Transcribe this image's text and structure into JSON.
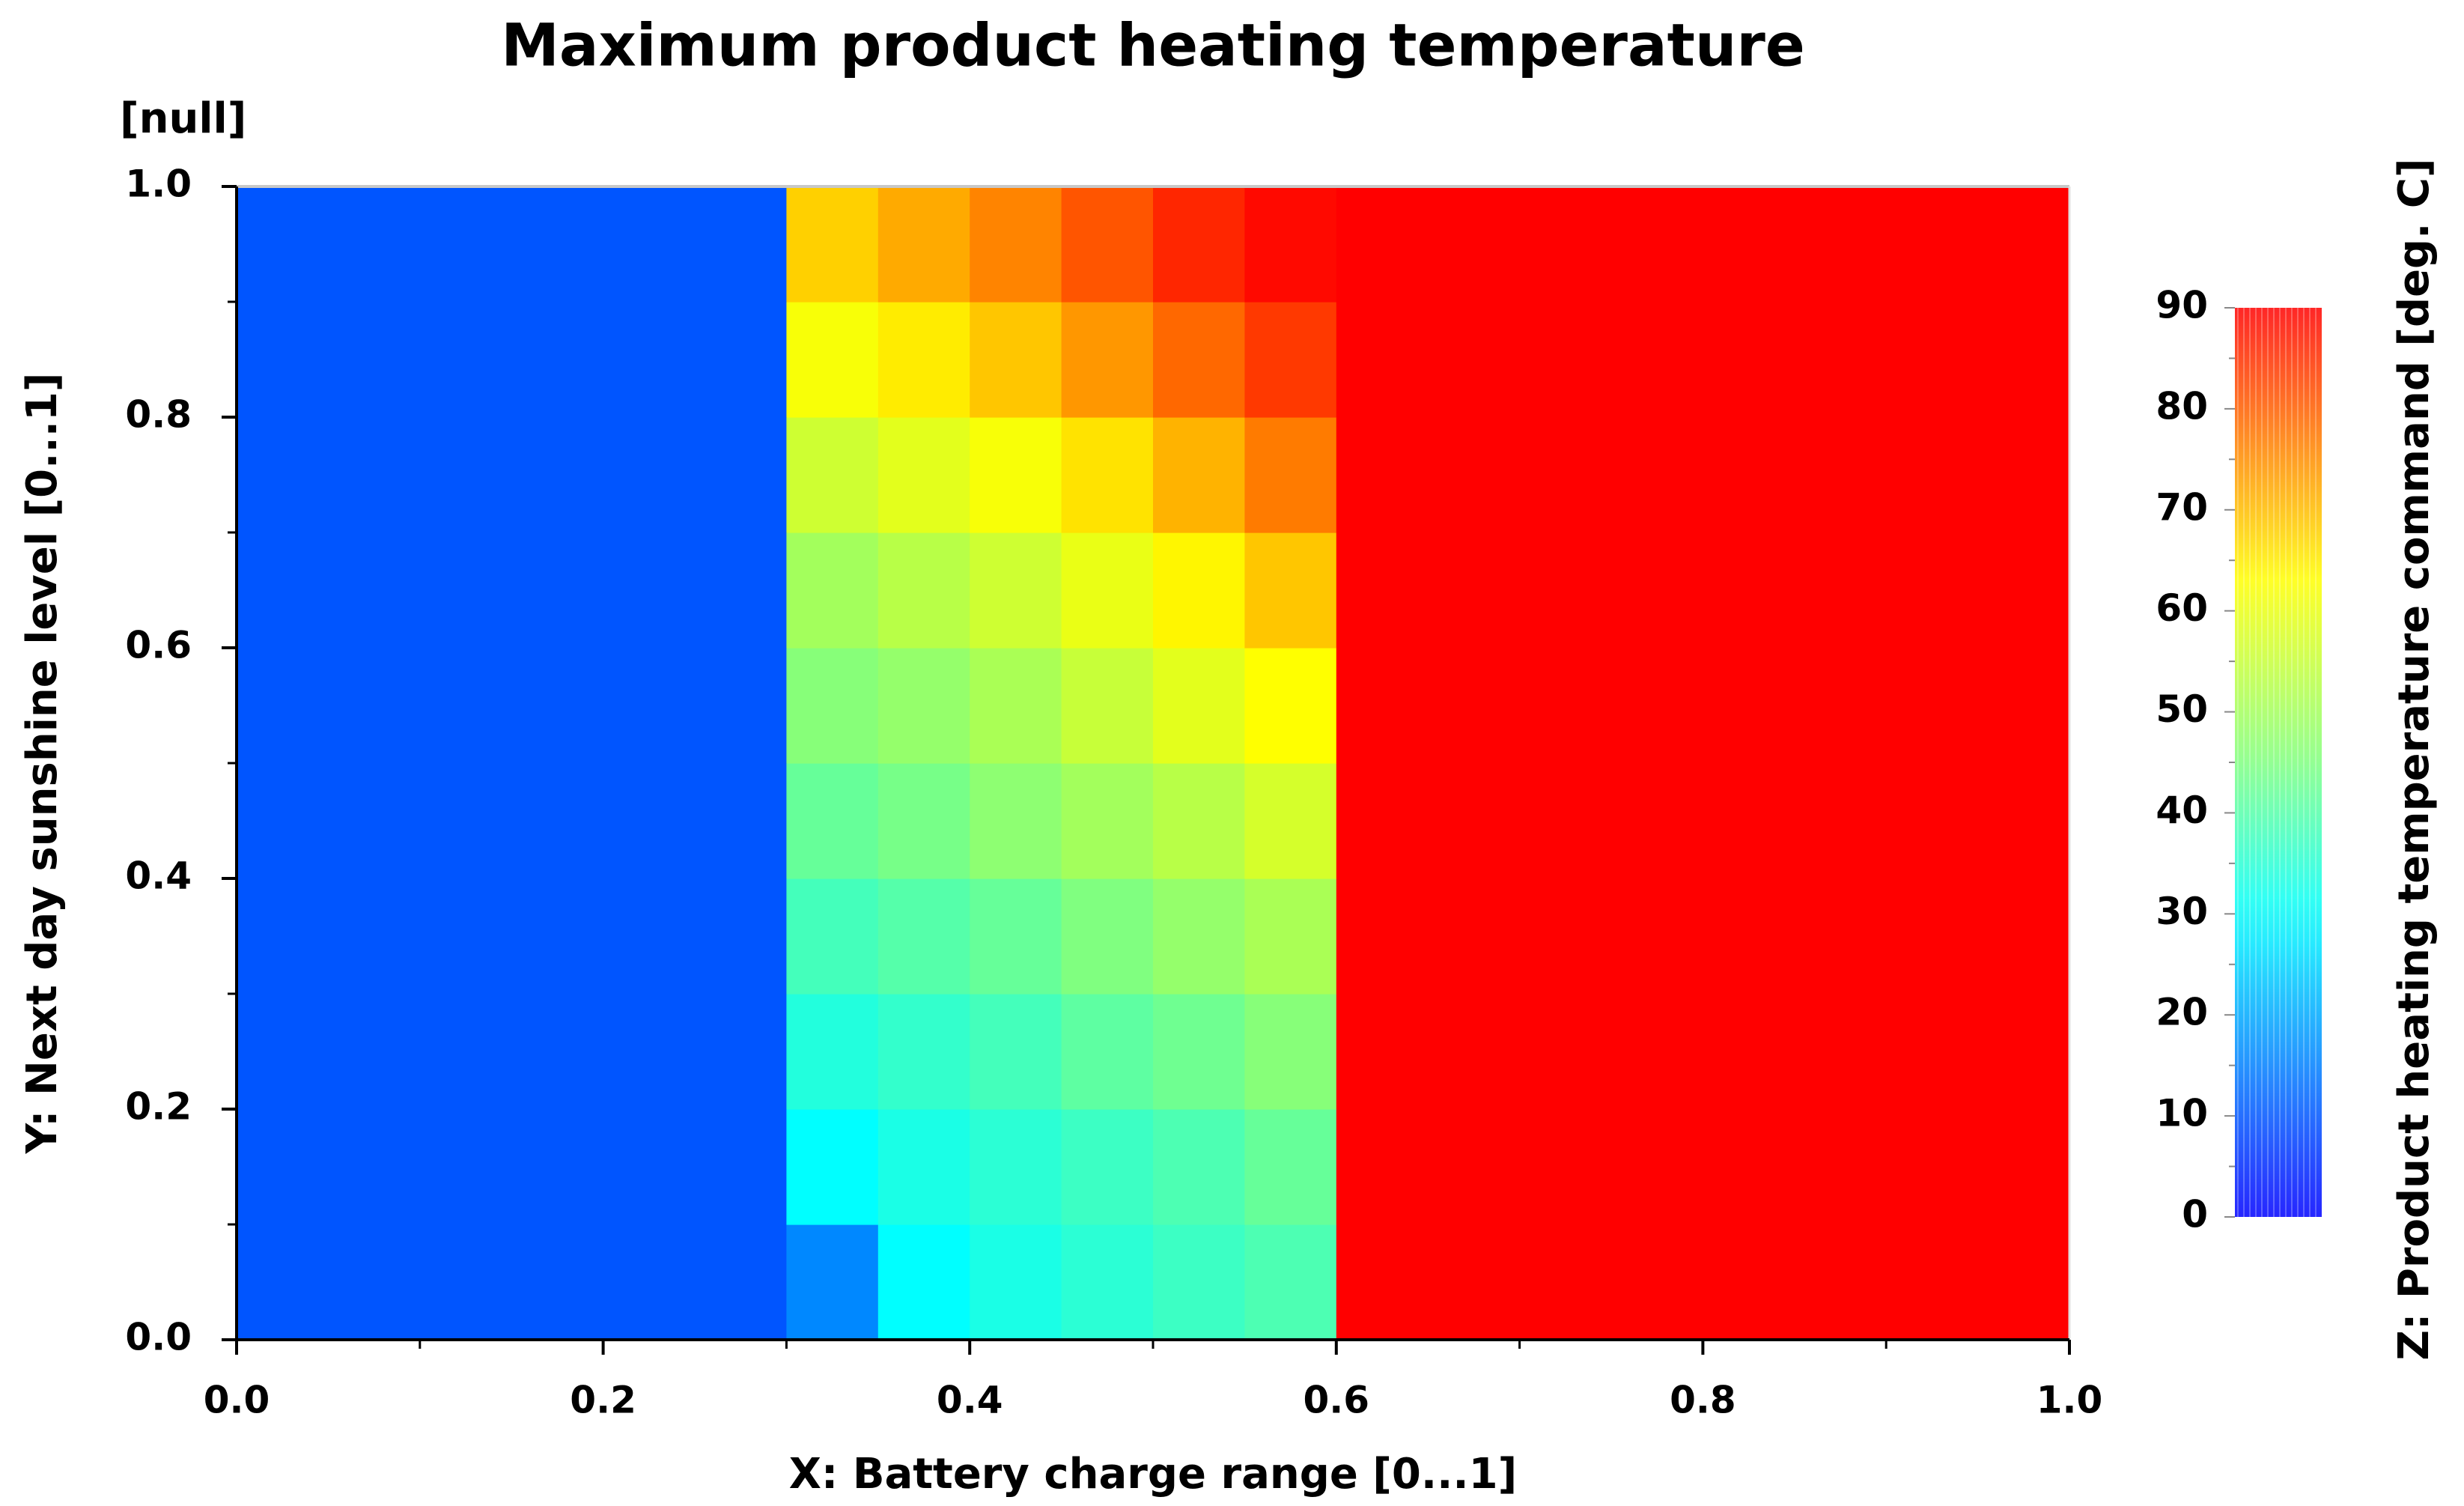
{
  "chart_data": {
    "type": "heatmap",
    "title": "Maximum product heating temperature",
    "annotation": "[null]",
    "x_label": "X: Battery charge range [0...1]",
    "y_label": "Y: Next day sunshine level [0...1]",
    "colorbar_label": "Z: Product heating temperature command [deg. C]",
    "colormap": "rainbow",
    "x_edges": [
      0.0,
      0.3,
      0.35,
      0.4,
      0.45,
      0.5,
      0.55,
      0.6,
      1.0
    ],
    "y_edges": [
      0.0,
      0.1,
      0.2,
      0.3,
      0.4,
      0.5,
      0.6,
      0.7,
      0.8,
      0.9,
      1.0
    ],
    "z": [
      [
        10,
        16,
        30,
        33,
        35,
        37,
        39,
        90
      ],
      [
        10,
        30,
        33,
        35,
        37,
        39,
        42,
        90
      ],
      [
        10,
        34,
        36,
        38,
        41,
        43,
        46,
        90
      ],
      [
        10,
        38,
        40,
        42,
        45,
        48,
        51,
        90
      ],
      [
        10,
        42,
        44,
        47,
        50,
        53,
        57,
        90
      ],
      [
        10,
        46,
        48,
        51,
        55,
        59,
        63,
        90
      ],
      [
        10,
        50,
        53,
        56,
        60,
        64,
        69,
        90
      ],
      [
        10,
        56,
        59,
        62,
        66,
        71,
        77,
        90
      ],
      [
        10,
        62,
        65,
        69,
        74,
        79,
        84,
        90
      ],
      [
        10,
        68,
        72,
        76,
        81,
        86,
        89,
        90
      ]
    ],
    "xlim": [
      0,
      1
    ],
    "ylim": [
      0,
      1
    ],
    "zlim": [
      0,
      90
    ],
    "xticks": [
      {
        "value": 0,
        "label": "0.0"
      },
      {
        "value": 0.2,
        "label": "0.2"
      },
      {
        "value": 0.4,
        "label": "0.4"
      },
      {
        "value": 0.6,
        "label": "0.6"
      },
      {
        "value": 0.8,
        "label": "0.8"
      },
      {
        "value": 1,
        "label": "1.0"
      }
    ],
    "yticks": [
      {
        "value": 0,
        "label": "0.0"
      },
      {
        "value": 0.2,
        "label": "0.2"
      },
      {
        "value": 0.4,
        "label": "0.4"
      },
      {
        "value": 0.6,
        "label": "0.6"
      },
      {
        "value": 0.8,
        "label": "0.8"
      },
      {
        "value": 1,
        "label": "1.0"
      }
    ],
    "zticks": [
      0,
      10,
      20,
      30,
      40,
      50,
      60,
      70,
      80,
      90
    ]
  }
}
